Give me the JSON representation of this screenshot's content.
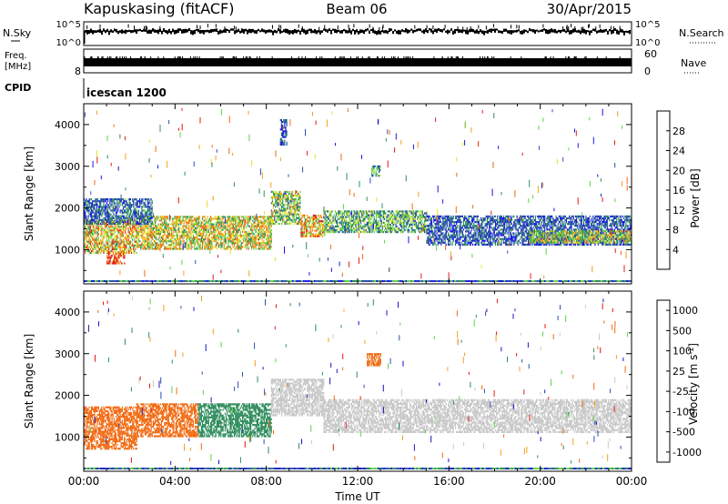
{
  "header": {
    "station": "Kapuskasing (fitACF)",
    "beam": "Beam 06",
    "date": "30/Apr/2015"
  },
  "top_panels": {
    "nsky_label": "N.Sky",
    "nsky_ticks": [
      "10^5",
      "10^0"
    ],
    "nsearch_label": "N.Search",
    "nsearch_ticks": [
      "10^5",
      "10^0"
    ],
    "freq_label": "Freq.",
    "freq_unit": "[MHz]",
    "freq_ticks": [
      "8"
    ],
    "nave_label": "Nave",
    "nave_ticks": [
      "60",
      "0"
    ],
    "cpid_label": "CPID",
    "cpid_value": "icescan 1200"
  },
  "x_axis": {
    "label": "Time UT",
    "ticks": [
      "00:00",
      "04:00",
      "08:00",
      "12:00",
      "16:00",
      "20:00",
      "00:00"
    ]
  },
  "colors": {
    "power": [
      "#1a14e6",
      "#2a4fb0",
      "#2e8c5c",
      "#5fd24a",
      "#e8e02a",
      "#f2a01c",
      "#f26a12",
      "#e41a14"
    ],
    "velocity": [
      "#1414c8",
      "#2a4fb0",
      "#2e8c5c",
      "#5fd24a",
      "#c8c8c8",
      "#f2a01c",
      "#f26a12",
      "#e41a14"
    ]
  },
  "chart_data": [
    {
      "type": "heatmap",
      "name": "power-panel",
      "ylabel": "Slant Range [km]",
      "x_hours_range": [
        0,
        24
      ],
      "y_range_km": [
        180,
        4500
      ],
      "y_ticks": [
        1000,
        2000,
        3000,
        4000
      ],
      "colorbar_label": "Power [dB]",
      "colorbar_ticks": [
        "4",
        "8",
        "12",
        "16",
        "20",
        "24",
        "28"
      ],
      "colorbar_range": [
        0,
        32
      ],
      "regions": [
        {
          "t0": 0.0,
          "t1": 2.3,
          "r0": 900,
          "r1": 1700,
          "value": 20
        },
        {
          "t0": 1.0,
          "t1": 1.8,
          "r0": 650,
          "r1": 950,
          "value": 28
        },
        {
          "t0": 2.3,
          "t1": 8.2,
          "r0": 1000,
          "r1": 1800,
          "value": 18
        },
        {
          "t0": 0.0,
          "t1": 3.0,
          "r0": 1600,
          "r1": 2200,
          "value": 7
        },
        {
          "t0": 8.2,
          "t1": 9.5,
          "r0": 1600,
          "r1": 2400,
          "value": 14
        },
        {
          "t0": 9.5,
          "t1": 10.5,
          "r0": 1300,
          "r1": 1800,
          "value": 22
        },
        {
          "t0": 10.5,
          "t1": 15.0,
          "r0": 1400,
          "r1": 1900,
          "value": 12
        },
        {
          "t0": 15.0,
          "t1": 24.0,
          "r0": 1100,
          "r1": 1800,
          "value": 6
        },
        {
          "t0": 19.5,
          "t1": 24.0,
          "r0": 1150,
          "r1": 1450,
          "value": 16
        },
        {
          "t0": 12.6,
          "t1": 13.0,
          "r0": 2750,
          "r1": 3000,
          "value": 10
        },
        {
          "t0": 8.6,
          "t1": 8.9,
          "r0": 3500,
          "r1": 4100,
          "value": 6
        }
      ]
    },
    {
      "type": "heatmap",
      "name": "velocity-panel",
      "ylabel": "Slant Range [km]",
      "x_hours_range": [
        0,
        24
      ],
      "y_range_km": [
        180,
        4500
      ],
      "y_ticks": [
        1000,
        2000,
        3000,
        4000
      ],
      "colorbar_label": "Velocity [m s^-1]",
      "colorbar_ticks": [
        "1000",
        "500",
        "100",
        "25",
        "-25",
        "-100",
        "-500",
        "-1000"
      ],
      "regions": [
        {
          "t0": 0.0,
          "t1": 2.3,
          "r0": 700,
          "r1": 1700,
          "value": -300
        },
        {
          "t0": 2.3,
          "t1": 5.0,
          "r0": 1000,
          "r1": 1800,
          "value": -150
        },
        {
          "t0": 5.0,
          "t1": 8.2,
          "r0": 1000,
          "r1": 1800,
          "value": 150
        },
        {
          "t0": 8.2,
          "t1": 10.5,
          "r0": 1500,
          "r1": 2400,
          "value": 0
        },
        {
          "t0": 10.5,
          "t1": 24.0,
          "r0": 1100,
          "r1": 1900,
          "value": 0
        },
        {
          "t0": 12.4,
          "t1": 13.0,
          "r0": 2700,
          "r1": 3000,
          "value": -200
        }
      ]
    }
  ]
}
